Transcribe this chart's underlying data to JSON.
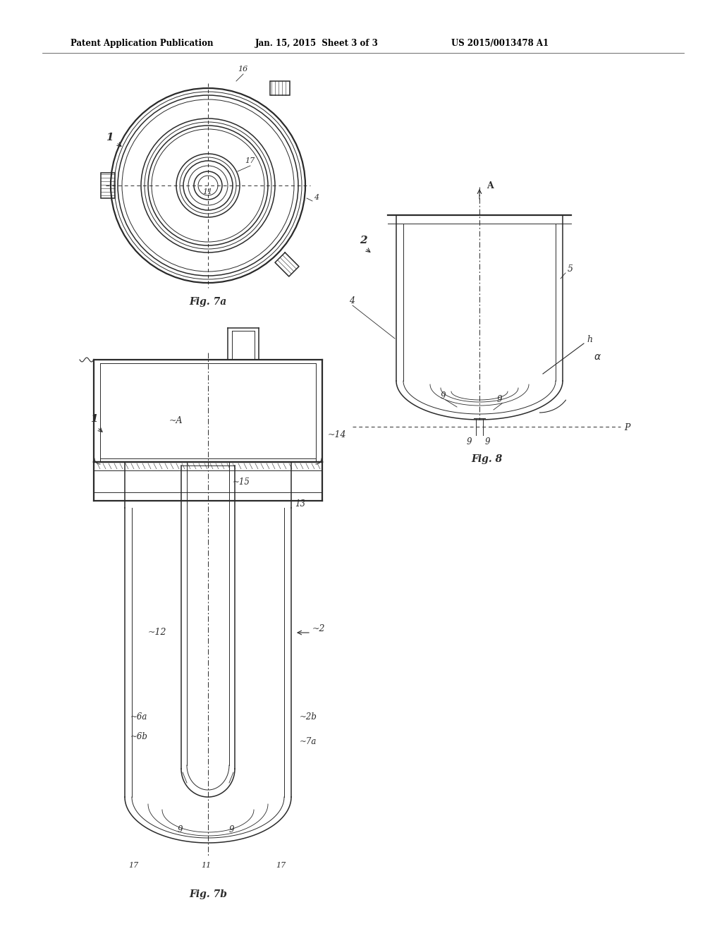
{
  "bg_color": "#ffffff",
  "header_left": "Patent Application Publication",
  "header_mid": "Jan. 15, 2015  Sheet 3 of 3",
  "header_right": "US 2015/0013478 A1",
  "fig7a_label": "Fig. 7a",
  "fig7b_label": "Fig. 7b",
  "fig8_label": "Fig. 8",
  "line_color": "#2a2a2a",
  "lw_thin": 0.7,
  "lw_med": 1.1,
  "lw_thick": 1.6
}
